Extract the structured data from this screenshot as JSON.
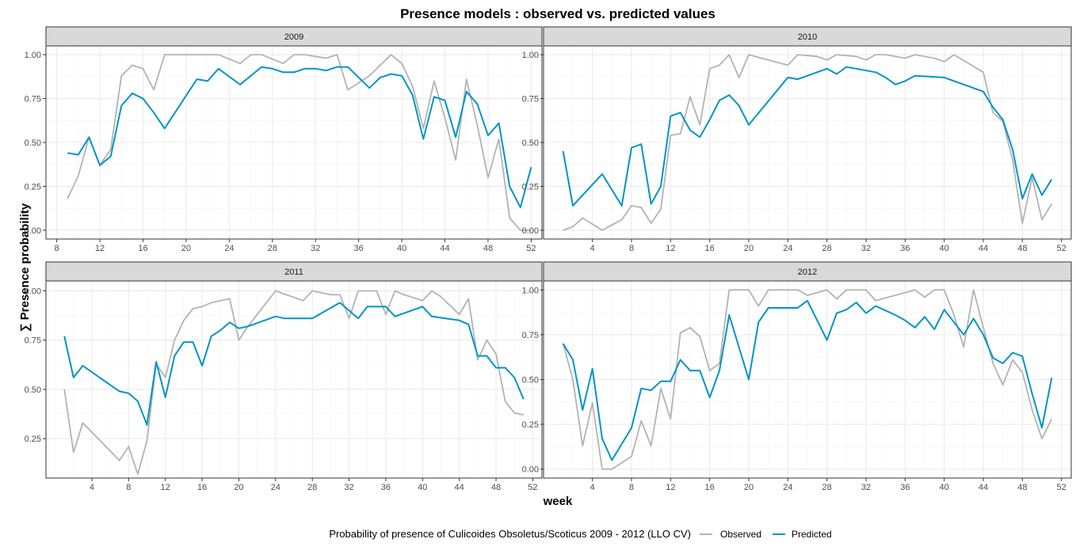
{
  "chart_data": {
    "type": "line",
    "title": "Presence models : observed vs. predicted values",
    "xlabel": "week",
    "ylabel": "∑ Presence probability",
    "grid": true,
    "legend_position": "bottom",
    "legend_title": "Probability of presence of Culicoides Obsoletus/Scoticus 2009 - 2012 (LLO CV)",
    "series_colors": {
      "Observed": "#b3b3b3",
      "Predicted": "#0094c6"
    },
    "panels": [
      {
        "strip": "2009",
        "xlim": [
          7,
          53
        ],
        "ylim": [
          -0.05,
          1.05
        ],
        "x_ticks": [
          8,
          12,
          16,
          20,
          24,
          28,
          32,
          36,
          40,
          44,
          48,
          52
        ],
        "y_ticks": [
          0.0,
          0.25,
          0.5,
          0.75,
          1.0
        ],
        "y_tick_labels": [
          "0.00",
          "0.25",
          "0.50",
          "0.75",
          "1.00"
        ],
        "series": [
          {
            "name": "Observed",
            "x": [
              9,
              10,
              11,
              12,
              13,
              14,
              15,
              16,
              17,
              18,
              23,
              25,
              26,
              27,
              29,
              30,
              31,
              32,
              33,
              34,
              35,
              37,
              39,
              40,
              41,
              42,
              43,
              44,
              45,
              46,
              47,
              48,
              49,
              50,
              51,
              52
            ],
            "y": [
              0.18,
              0.31,
              0.53,
              0.37,
              0.46,
              0.88,
              0.94,
              0.92,
              0.8,
              1.0,
              1.0,
              0.95,
              1.0,
              1.0,
              0.95,
              1.0,
              1.0,
              0.99,
              0.98,
              1.0,
              0.8,
              0.88,
              1.0,
              0.95,
              0.82,
              0.58,
              0.85,
              0.64,
              0.4,
              0.86,
              0.6,
              0.3,
              0.52,
              0.07,
              0.0,
              0.0
            ]
          },
          {
            "name": "Predicted",
            "x": [
              9,
              10,
              11,
              12,
              13,
              14,
              15,
              16,
              17,
              18,
              21,
              22,
              23,
              25,
              27,
              28,
              29,
              30,
              31,
              32,
              33,
              34,
              35,
              37,
              38,
              39,
              40,
              41,
              42,
              43,
              44,
              45,
              46,
              47,
              48,
              49,
              50,
              51,
              52
            ],
            "y": [
              0.44,
              0.43,
              0.53,
              0.37,
              0.42,
              0.71,
              0.78,
              0.75,
              0.67,
              0.58,
              0.86,
              0.85,
              0.92,
              0.83,
              0.93,
              0.92,
              0.9,
              0.9,
              0.92,
              0.92,
              0.91,
              0.93,
              0.93,
              0.81,
              0.87,
              0.89,
              0.88,
              0.77,
              0.52,
              0.76,
              0.74,
              0.53,
              0.79,
              0.72,
              0.54,
              0.61,
              0.25,
              0.13,
              0.36
            ]
          }
        ]
      },
      {
        "strip": "2010",
        "xlim": [
          -1,
          53
        ],
        "ylim": [
          -0.05,
          1.05
        ],
        "x_ticks": [
          4,
          8,
          12,
          16,
          20,
          24,
          28,
          32,
          36,
          40,
          44,
          48,
          52
        ],
        "y_ticks": [
          0.0,
          0.25,
          0.5,
          0.75,
          1.0
        ],
        "y_tick_labels": [
          "0.00",
          "0.25",
          "0.50",
          "0.75",
          "1.00"
        ],
        "series": [
          {
            "name": "Observed",
            "x": [
              1,
              2,
              3,
              5,
              7,
              8,
              9,
              10,
              11,
              12,
              13,
              14,
              15,
              16,
              17,
              18,
              19,
              20,
              24,
              25,
              27,
              28,
              29,
              31,
              32,
              33,
              34,
              35,
              36,
              37,
              39,
              40,
              41,
              44,
              45,
              46,
              47,
              48,
              49,
              50,
              51
            ],
            "y": [
              0.0,
              0.02,
              0.07,
              0.0,
              0.06,
              0.14,
              0.13,
              0.04,
              0.12,
              0.54,
              0.55,
              0.76,
              0.6,
              0.92,
              0.94,
              1.0,
              0.87,
              1.0,
              0.94,
              1.0,
              0.99,
              0.97,
              1.0,
              0.99,
              0.97,
              1.0,
              1.0,
              0.99,
              0.98,
              1.0,
              0.98,
              0.96,
              1.0,
              0.9,
              0.67,
              0.62,
              0.4,
              0.04,
              0.3,
              0.06,
              0.15
            ]
          },
          {
            "name": "Predicted",
            "x": [
              1,
              2,
              5,
              7,
              8,
              9,
              10,
              11,
              12,
              13,
              14,
              15,
              16,
              17,
              18,
              19,
              20,
              24,
              25,
              28,
              29,
              30,
              31,
              33,
              34,
              35,
              36,
              37,
              40,
              44,
              45,
              46,
              47,
              48,
              49,
              50,
              51
            ],
            "y": [
              0.45,
              0.14,
              0.32,
              0.14,
              0.47,
              0.49,
              0.15,
              0.25,
              0.65,
              0.67,
              0.57,
              0.53,
              0.63,
              0.74,
              0.77,
              0.71,
              0.6,
              0.87,
              0.86,
              0.92,
              0.89,
              0.93,
              0.92,
              0.9,
              0.87,
              0.83,
              0.85,
              0.88,
              0.87,
              0.79,
              0.7,
              0.63,
              0.46,
              0.18,
              0.32,
              0.2,
              0.29
            ]
          }
        ]
      },
      {
        "strip": "2011",
        "xlim": [
          -1,
          53
        ],
        "ylim": [
          0.05,
          1.05
        ],
        "x_ticks": [
          4,
          8,
          12,
          16,
          20,
          24,
          28,
          32,
          36,
          40,
          44,
          48,
          52
        ],
        "y_ticks": [
          0.25,
          0.5,
          0.75,
          1.0
        ],
        "y_tick_labels": [
          "0.25",
          "0.50",
          "0.75",
          "1.00"
        ],
        "series": [
          {
            "name": "Observed",
            "x": [
              1,
              2,
              3,
              7,
              8,
              9,
              10,
              11,
              12,
              13,
              14,
              15,
              16,
              17,
              18,
              19,
              20,
              21,
              22,
              24,
              27,
              28,
              29,
              30,
              31,
              32,
              33,
              34,
              35,
              36,
              37,
              38,
              40,
              41,
              42,
              44,
              45,
              46,
              47,
              48,
              49,
              50,
              51
            ],
            "y": [
              0.5,
              0.18,
              0.33,
              0.14,
              0.21,
              0.07,
              0.24,
              0.63,
              0.56,
              0.75,
              0.85,
              0.91,
              0.92,
              0.94,
              0.95,
              0.96,
              0.75,
              0.82,
              0.88,
              1.0,
              0.95,
              1.0,
              0.99,
              0.98,
              0.98,
              0.86,
              1.0,
              1.0,
              1.0,
              0.88,
              1.0,
              0.98,
              0.95,
              1.0,
              0.97,
              0.88,
              0.96,
              0.65,
              0.75,
              0.68,
              0.44,
              0.38,
              0.37
            ]
          },
          {
            "name": "Predicted",
            "x": [
              1,
              2,
              3,
              7,
              8,
              9,
              10,
              11,
              12,
              13,
              14,
              15,
              16,
              17,
              18,
              19,
              20,
              21,
              24,
              25,
              28,
              31,
              32,
              33,
              34,
              35,
              36,
              37,
              40,
              41,
              44,
              45,
              46,
              47,
              48,
              49,
              50,
              51
            ],
            "y": [
              0.77,
              0.56,
              0.62,
              0.49,
              0.48,
              0.44,
              0.32,
              0.64,
              0.46,
              0.67,
              0.74,
              0.74,
              0.62,
              0.77,
              0.8,
              0.84,
              0.81,
              0.82,
              0.87,
              0.86,
              0.86,
              0.94,
              0.9,
              0.86,
              0.92,
              0.92,
              0.92,
              0.87,
              0.92,
              0.87,
              0.85,
              0.83,
              0.67,
              0.67,
              0.61,
              0.61,
              0.56,
              0.45
            ]
          }
        ]
      },
      {
        "strip": "2012",
        "xlim": [
          -1,
          53
        ],
        "ylim": [
          -0.05,
          1.05
        ],
        "x_ticks": [
          4,
          8,
          12,
          16,
          20,
          24,
          28,
          32,
          36,
          40,
          44,
          48,
          52
        ],
        "y_ticks": [
          0.0,
          0.25,
          0.5,
          0.75,
          1.0
        ],
        "y_tick_labels": [
          "0.00",
          "0.25",
          "0.50",
          "0.75",
          "1.00"
        ],
        "series": [
          {
            "name": "Observed",
            "x": [
              1,
              2,
              3,
              4,
              5,
              6,
              8,
              9,
              10,
              11,
              12,
              13,
              14,
              15,
              16,
              17,
              18,
              20,
              21,
              22,
              25,
              26,
              28,
              29,
              30,
              31,
              32,
              33,
              37,
              38,
              39,
              40,
              41,
              42,
              43,
              44,
              45,
              46,
              47,
              48,
              49,
              50,
              51
            ],
            "y": [
              0.7,
              0.5,
              0.13,
              0.37,
              0.0,
              0.0,
              0.07,
              0.27,
              0.13,
              0.45,
              0.28,
              0.76,
              0.79,
              0.74,
              0.55,
              0.59,
              1.0,
              1.0,
              0.91,
              1.0,
              1.0,
              0.97,
              1.0,
              0.95,
              1.0,
              1.0,
              1.0,
              0.94,
              1.0,
              0.96,
              1.0,
              1.0,
              0.86,
              0.68,
              1.0,
              0.79,
              0.59,
              0.47,
              0.61,
              0.54,
              0.33,
              0.17,
              0.28
            ]
          },
          {
            "name": "Predicted",
            "x": [
              1,
              2,
              3,
              4,
              5,
              6,
              8,
              9,
              10,
              11,
              12,
              13,
              14,
              15,
              16,
              17,
              18,
              20,
              21,
              22,
              24,
              25,
              26,
              28,
              29,
              30,
              31,
              32,
              33,
              35,
              36,
              37,
              38,
              39,
              40,
              41,
              42,
              43,
              44,
              45,
              46,
              47,
              48,
              49,
              50,
              51
            ],
            "y": [
              0.7,
              0.61,
              0.33,
              0.56,
              0.17,
              0.05,
              0.23,
              0.45,
              0.44,
              0.49,
              0.49,
              0.61,
              0.55,
              0.55,
              0.4,
              0.55,
              0.86,
              0.5,
              0.82,
              0.9,
              0.9,
              0.9,
              0.94,
              0.72,
              0.87,
              0.89,
              0.93,
              0.87,
              0.91,
              0.86,
              0.83,
              0.79,
              0.85,
              0.78,
              0.89,
              0.82,
              0.75,
              0.84,
              0.75,
              0.62,
              0.59,
              0.65,
              0.63,
              0.42,
              0.23,
              0.51
            ]
          }
        ]
      }
    ]
  }
}
